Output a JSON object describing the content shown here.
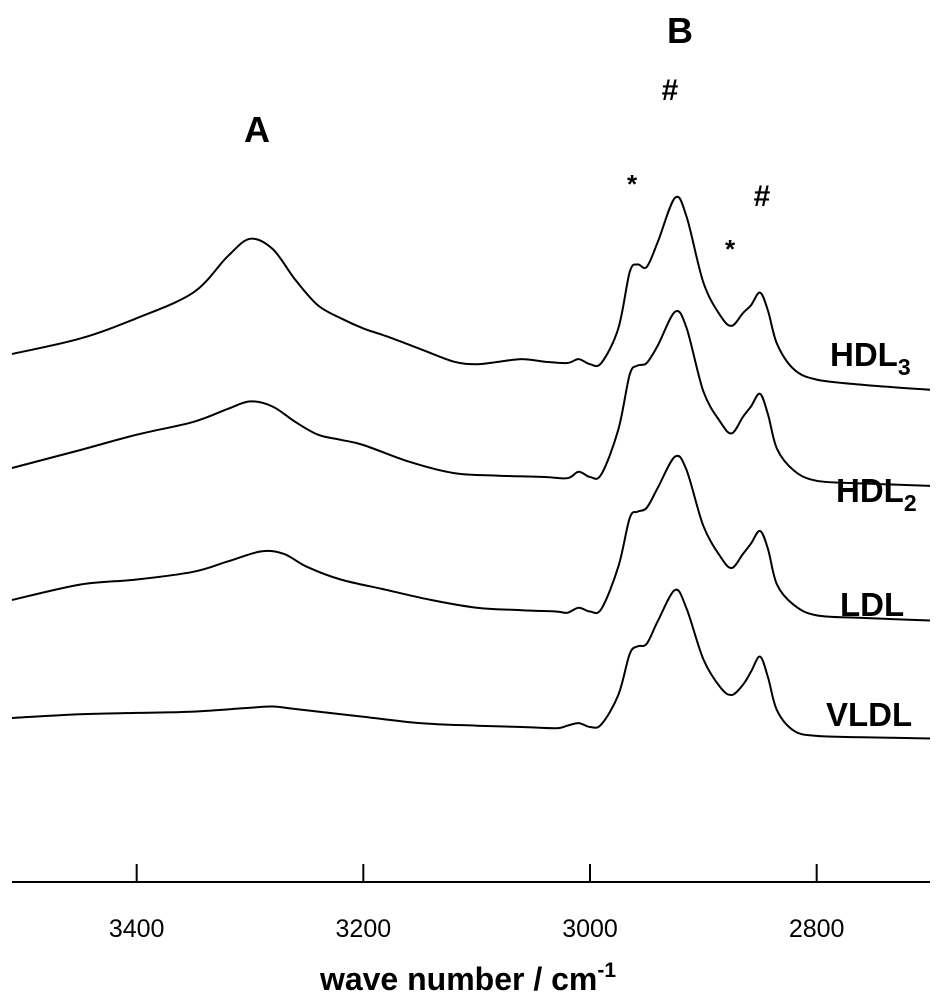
{
  "chart_data": {
    "type": "line",
    "xlabel": "wave number / cm",
    "xlabel_superscript": "-1",
    "xlim": [
      3510,
      2700
    ],
    "x_ticks": [
      3400,
      3200,
      3000,
      2800
    ],
    "y_axis_shown": false,
    "grid": false,
    "band_labels": [
      "A",
      "B"
    ],
    "peak_markers": [
      "#",
      "#",
      "*",
      "*"
    ],
    "series": [
      {
        "name": "HDL",
        "subscript": "3",
        "points": [
          [
            3510,
            0.52
          ],
          [
            3450,
            0.64
          ],
          [
            3400,
            0.8
          ],
          [
            3350,
            1.0
          ],
          [
            3320,
            1.28
          ],
          [
            3300,
            1.42
          ],
          [
            3280,
            1.34
          ],
          [
            3260,
            1.1
          ],
          [
            3240,
            0.9
          ],
          [
            3220,
            0.8
          ],
          [
            3200,
            0.72
          ],
          [
            3180,
            0.66
          ],
          [
            3150,
            0.56
          ],
          [
            3120,
            0.46
          ],
          [
            3100,
            0.44
          ],
          [
            3080,
            0.46
          ],
          [
            3060,
            0.48
          ],
          [
            3040,
            0.46
          ],
          [
            3020,
            0.45
          ],
          [
            3010,
            0.48
          ],
          [
            3000,
            0.44
          ],
          [
            2990,
            0.45
          ],
          [
            2975,
            0.72
          ],
          [
            2965,
            1.16
          ],
          [
            2958,
            1.22
          ],
          [
            2950,
            1.2
          ],
          [
            2940,
            1.4
          ],
          [
            2925,
            1.74
          ],
          [
            2915,
            1.6
          ],
          [
            2900,
            1.08
          ],
          [
            2885,
            0.82
          ],
          [
            2875,
            0.74
          ],
          [
            2865,
            0.84
          ],
          [
            2858,
            0.9
          ],
          [
            2850,
            1.0
          ],
          [
            2843,
            0.86
          ],
          [
            2835,
            0.6
          ],
          [
            2820,
            0.4
          ],
          [
            2800,
            0.32
          ],
          [
            2760,
            0.28
          ],
          [
            2700,
            0.24
          ]
        ]
      },
      {
        "name": "HDL",
        "subscript": "2",
        "points": [
          [
            3510,
            0.4
          ],
          [
            3450,
            0.54
          ],
          [
            3400,
            0.66
          ],
          [
            3350,
            0.76
          ],
          [
            3320,
            0.86
          ],
          [
            3300,
            0.92
          ],
          [
            3280,
            0.88
          ],
          [
            3260,
            0.76
          ],
          [
            3240,
            0.66
          ],
          [
            3220,
            0.62
          ],
          [
            3200,
            0.58
          ],
          [
            3160,
            0.45
          ],
          [
            3120,
            0.36
          ],
          [
            3080,
            0.34
          ],
          [
            3040,
            0.33
          ],
          [
            3020,
            0.32
          ],
          [
            3010,
            0.37
          ],
          [
            3000,
            0.33
          ],
          [
            2990,
            0.35
          ],
          [
            2975,
            0.7
          ],
          [
            2965,
            1.13
          ],
          [
            2958,
            1.2
          ],
          [
            2950,
            1.22
          ],
          [
            2940,
            1.36
          ],
          [
            2925,
            1.62
          ],
          [
            2915,
            1.5
          ],
          [
            2900,
            1.0
          ],
          [
            2885,
            0.76
          ],
          [
            2875,
            0.67
          ],
          [
            2865,
            0.8
          ],
          [
            2858,
            0.88
          ],
          [
            2850,
            0.98
          ],
          [
            2843,
            0.82
          ],
          [
            2835,
            0.55
          ],
          [
            2820,
            0.38
          ],
          [
            2800,
            0.3
          ],
          [
            2760,
            0.28
          ],
          [
            2700,
            0.26
          ]
        ]
      },
      {
        "name": "LDL",
        "points": [
          [
            3510,
            0.4
          ],
          [
            3450,
            0.52
          ],
          [
            3400,
            0.56
          ],
          [
            3350,
            0.62
          ],
          [
            3320,
            0.7
          ],
          [
            3290,
            0.78
          ],
          [
            3270,
            0.76
          ],
          [
            3250,
            0.66
          ],
          [
            3220,
            0.56
          ],
          [
            3180,
            0.48
          ],
          [
            3140,
            0.4
          ],
          [
            3100,
            0.34
          ],
          [
            3060,
            0.32
          ],
          [
            3030,
            0.31
          ],
          [
            3020,
            0.3
          ],
          [
            3010,
            0.34
          ],
          [
            3000,
            0.31
          ],
          [
            2990,
            0.33
          ],
          [
            2975,
            0.66
          ],
          [
            2965,
            1.04
          ],
          [
            2958,
            1.09
          ],
          [
            2950,
            1.12
          ],
          [
            2940,
            1.28
          ],
          [
            2925,
            1.52
          ],
          [
            2915,
            1.42
          ],
          [
            2900,
            0.98
          ],
          [
            2885,
            0.74
          ],
          [
            2875,
            0.65
          ],
          [
            2865,
            0.76
          ],
          [
            2858,
            0.84
          ],
          [
            2850,
            0.94
          ],
          [
            2843,
            0.8
          ],
          [
            2835,
            0.52
          ],
          [
            2820,
            0.36
          ],
          [
            2800,
            0.28
          ],
          [
            2760,
            0.26
          ],
          [
            2700,
            0.24
          ]
        ]
      },
      {
        "name": "VLDL",
        "points": [
          [
            3510,
            0.44
          ],
          [
            3450,
            0.47
          ],
          [
            3400,
            0.48
          ],
          [
            3350,
            0.49
          ],
          [
            3300,
            0.52
          ],
          [
            3280,
            0.53
          ],
          [
            3260,
            0.51
          ],
          [
            3200,
            0.45
          ],
          [
            3150,
            0.4
          ],
          [
            3100,
            0.38
          ],
          [
            3060,
            0.37
          ],
          [
            3030,
            0.36
          ],
          [
            3020,
            0.38
          ],
          [
            3010,
            0.4
          ],
          [
            3000,
            0.37
          ],
          [
            2990,
            0.39
          ],
          [
            2975,
            0.62
          ],
          [
            2965,
            0.94
          ],
          [
            2958,
            1.0
          ],
          [
            2950,
            1.02
          ],
          [
            2940,
            1.2
          ],
          [
            2925,
            1.44
          ],
          [
            2915,
            1.3
          ],
          [
            2900,
            0.9
          ],
          [
            2885,
            0.68
          ],
          [
            2875,
            0.62
          ],
          [
            2865,
            0.7
          ],
          [
            2858,
            0.8
          ],
          [
            2850,
            0.92
          ],
          [
            2843,
            0.76
          ],
          [
            2835,
            0.5
          ],
          [
            2820,
            0.34
          ],
          [
            2800,
            0.3
          ],
          [
            2760,
            0.29
          ],
          [
            2700,
            0.28
          ]
        ]
      }
    ]
  }
}
